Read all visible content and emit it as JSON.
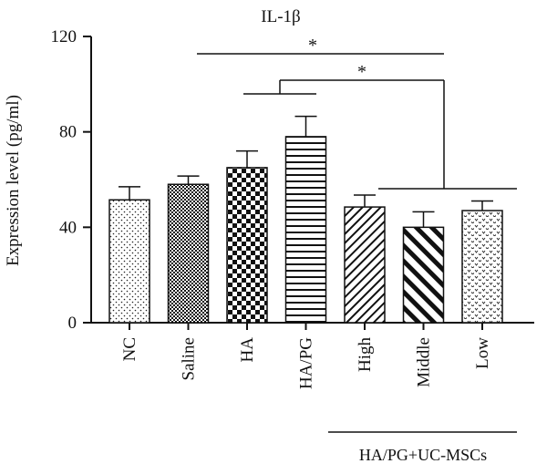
{
  "chart_data": {
    "type": "bar",
    "title": "IL-1β",
    "xlabel": "",
    "ylabel": "Expression level (pg/ml)",
    "ylim": [
      0,
      120
    ],
    "yticks": [
      "0",
      "40",
      "80",
      "120"
    ],
    "ytick_values": [
      0,
      40,
      80,
      120
    ],
    "categories": [
      "NC",
      "Saline",
      "HA",
      "HA/PG",
      "High",
      "Middle",
      "Low"
    ],
    "values": [
      51.5,
      58,
      65,
      78,
      48.5,
      40,
      47
    ],
    "errors": [
      5.5,
      3.5,
      7,
      8.5,
      5,
      6.5,
      4
    ],
    "patterns": [
      "dots",
      "fine-check",
      "checker",
      "horizontal-lines",
      "diagonal-lines",
      "thick-diagonal",
      "chevron-dots"
    ],
    "group_label": "HA/PG+UC-MSCs",
    "significance": [
      "*",
      "*"
    ]
  }
}
